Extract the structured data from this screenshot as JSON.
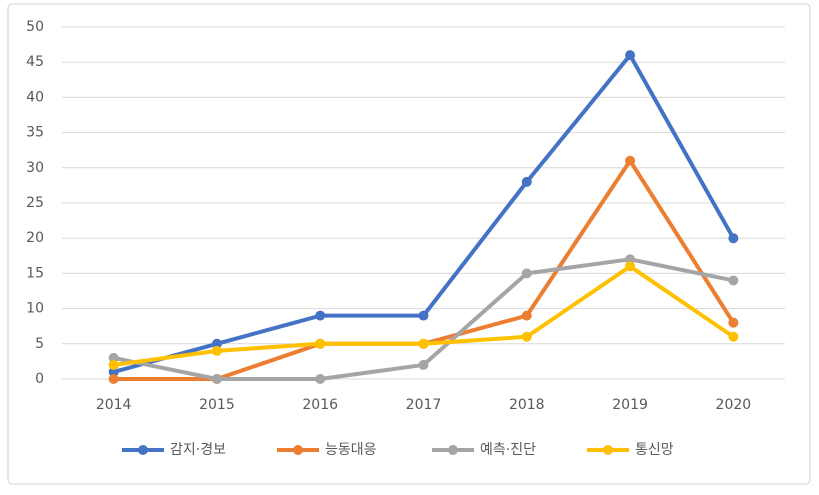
{
  "chart_data": {
    "type": "line",
    "categories": [
      "2014",
      "2015",
      "2016",
      "2017",
      "2018",
      "2019",
      "2020"
    ],
    "series": [
      {
        "name": "감지·경보",
        "color": "#4472c4",
        "values": [
          1,
          5,
          9,
          9,
          28,
          46,
          20
        ]
      },
      {
        "name": "능동대응",
        "color": "#ed7d31",
        "values": [
          0,
          0,
          5,
          5,
          9,
          31,
          8
        ]
      },
      {
        "name": "예측·진단",
        "color": "#a5a5a5",
        "values": [
          3,
          0,
          0,
          2,
          15,
          17,
          14
        ]
      },
      {
        "name": "통신망",
        "color": "#ffc000",
        "values": [
          2,
          4,
          5,
          5,
          6,
          16,
          6
        ]
      }
    ],
    "ylim": [
      0,
      50
    ],
    "yticks": [
      0,
      5,
      10,
      15,
      20,
      25,
      30,
      35,
      40,
      45,
      50
    ],
    "grid": true,
    "legend": "bottom"
  }
}
